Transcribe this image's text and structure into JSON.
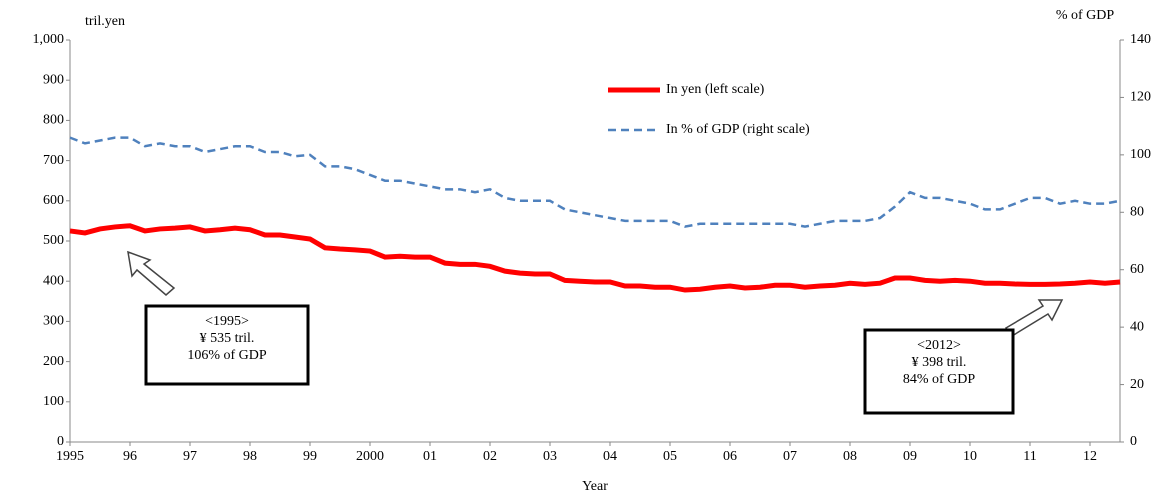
{
  "chart_data": {
    "type": "line",
    "y_label": "tril.yen",
    "y2_label": "% of GDP",
    "x_label": "Year",
    "categories": [
      "1995",
      null,
      null,
      null,
      "96",
      null,
      null,
      null,
      "97",
      null,
      null,
      null,
      "98",
      null,
      null,
      null,
      "99",
      null,
      null,
      null,
      "2000",
      null,
      null,
      null,
      "01",
      null,
      null,
      null,
      "02",
      null,
      null,
      null,
      "03",
      null,
      null,
      null,
      "04",
      null,
      null,
      null,
      "05",
      null,
      null,
      null,
      "06",
      null,
      null,
      null,
      "07",
      null,
      null,
      null,
      "08",
      null,
      null,
      null,
      "09",
      null,
      null,
      null,
      "10",
      null,
      null,
      null,
      "11",
      null,
      null,
      null,
      "12",
      null,
      null
    ],
    "series": [
      {
        "name": "In yen (left scale)",
        "color": "#ff0000",
        "linestyle": "solid",
        "axis": "y",
        "values": [
          525,
          520,
          530,
          535,
          538,
          525,
          530,
          532,
          535,
          525,
          528,
          532,
          528,
          515,
          515,
          510,
          505,
          483,
          480,
          478,
          475,
          460,
          462,
          460,
          460,
          445,
          442,
          442,
          437,
          425,
          420,
          418,
          418,
          402,
          400,
          398,
          398,
          388,
          388,
          385,
          385,
          378,
          380,
          385,
          388,
          383,
          385,
          390,
          390,
          385,
          388,
          390,
          395,
          392,
          395,
          408,
          408,
          402,
          400,
          402,
          400,
          395,
          395,
          393,
          392,
          392,
          393,
          395,
          398,
          395,
          398
        ]
      },
      {
        "name": "In % of GDP (right scale)",
        "color": "#4f81bd",
        "linestyle": "dashed",
        "axis": "y2",
        "values": [
          106,
          104,
          105,
          106,
          106,
          103,
          104,
          103,
          103,
          101,
          102,
          103,
          103,
          101,
          101,
          99.5,
          100,
          96,
          96,
          95,
          93,
          91,
          91,
          90,
          89,
          88,
          88,
          87,
          88,
          85,
          84,
          84,
          84,
          81,
          80,
          79,
          78,
          77,
          77,
          77,
          77,
          75,
          76,
          76,
          76,
          76,
          76,
          76,
          76,
          75,
          76,
          77,
          77,
          77,
          78,
          82,
          87,
          85,
          85,
          84,
          83,
          81,
          81,
          83,
          85,
          85,
          83,
          84,
          83,
          83,
          84
        ]
      }
    ],
    "ylim": [
      0,
      1000
    ],
    "yticks": [
      0,
      100,
      200,
      300,
      400,
      500,
      600,
      700,
      800,
      900,
      {
        "value": 1000,
        "label": "1,000"
      }
    ],
    "y2lim": [
      0,
      140
    ],
    "y2ticks": [
      0,
      20,
      40,
      60,
      80,
      100,
      120,
      140
    ],
    "grid": false,
    "annotations": [
      {
        "lines": [
          "<1995>",
          "¥ 535 tril.",
          "106% of GDP"
        ]
      },
      {
        "lines": [
          "<2012>",
          "¥ 398 tril.",
          "84% of GDP"
        ]
      }
    ]
  }
}
